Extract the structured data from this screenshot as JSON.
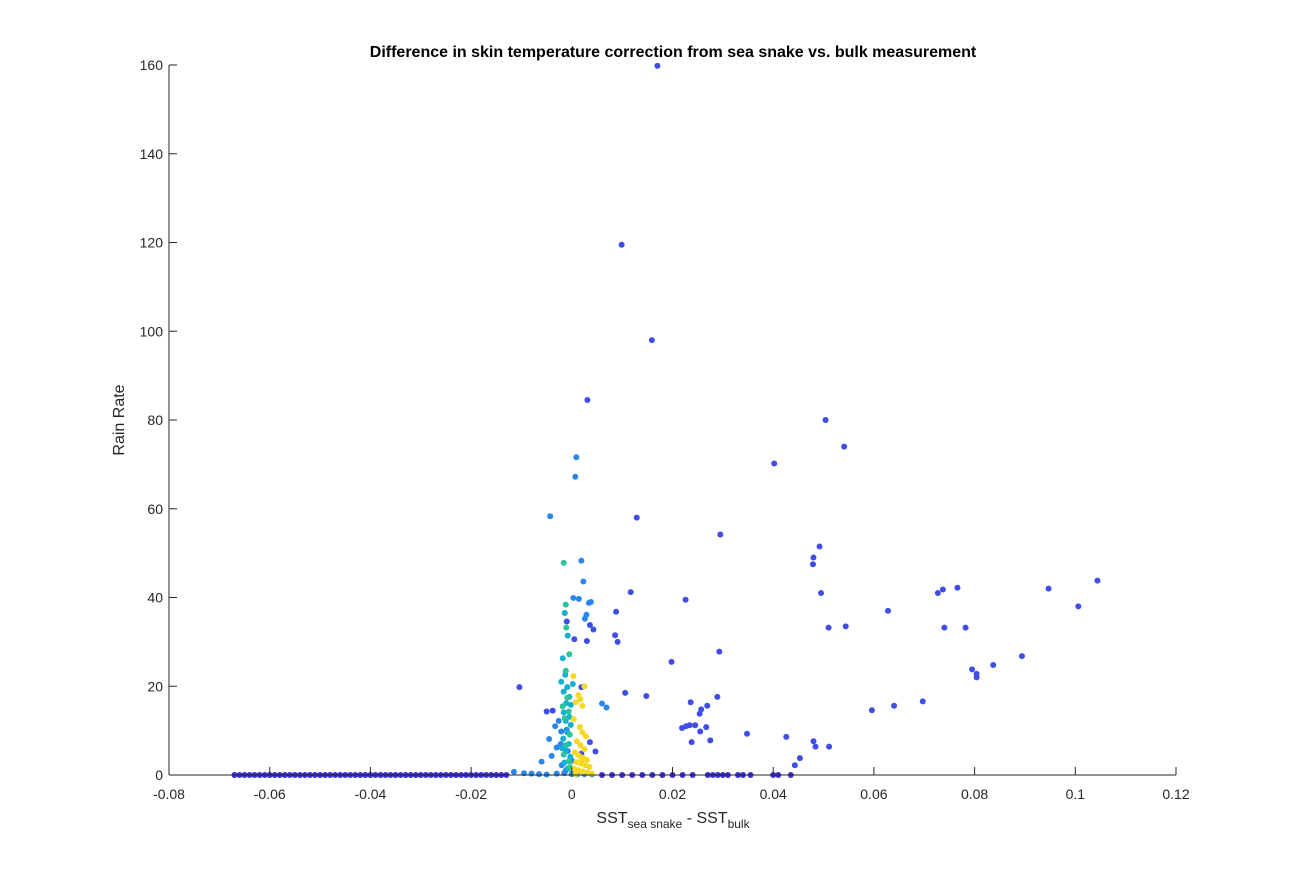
{
  "chart_data": {
    "type": "scatter",
    "title": "Difference in skin temperature correction from sea snake vs. bulk measurement",
    "xlabel": {
      "parts": [
        {
          "text": "SST",
          "sub": false
        },
        {
          "text": "sea snake",
          "sub": true
        },
        {
          "text": " - SST",
          "sub": false
        },
        {
          "text": "bulk",
          "sub": true
        }
      ]
    },
    "ylabel": "Rain Rate",
    "xlim": [
      -0.08,
      0.12
    ],
    "ylim": [
      0,
      160
    ],
    "x_ticks": [
      -0.08,
      -0.06,
      -0.04,
      -0.02,
      0,
      0.02,
      0.04,
      0.06,
      0.08,
      0.1,
      0.12
    ],
    "x_tick_labels": [
      "-0.08",
      "-0.06",
      "-0.04",
      "-0.02",
      "0",
      "0.02",
      "0.04",
      "0.06",
      "0.08",
      "0.1",
      "0.12"
    ],
    "y_ticks": [
      0,
      20,
      40,
      60,
      80,
      100,
      120,
      140,
      160
    ],
    "y_tick_labels": [
      "0",
      "20",
      "40",
      "60",
      "80",
      "100",
      "120",
      "140",
      "160"
    ],
    "grid": false,
    "legend": "none",
    "box": "left-bottom axes only",
    "colors": {
      "indigo": "#3b2fd6",
      "blue": "#3f4ee6",
      "azure": "#2b86ec",
      "cyan": "#14b0d2",
      "teal": "#2ec49a",
      "yellow": "#f5d823"
    },
    "series": [
      {
        "color": "#3f4ee6",
        "points": [
          [
            0.017,
            159.8
          ],
          [
            0.0099,
            119.5
          ],
          [
            0.0159,
            98.0
          ],
          [
            0.0031,
            84.5
          ],
          [
            0.0504,
            80.0
          ],
          [
            0.0541,
            74.0
          ],
          [
            0.0402,
            70.2
          ],
          [
            0.0295,
            54.2
          ],
          [
            0.0129,
            58.0
          ],
          [
            0.0492,
            51.5
          ],
          [
            0.048,
            49.0
          ],
          [
            0.0479,
            47.5
          ],
          [
            0.1044,
            43.8
          ],
          [
            0.0947,
            42.0
          ],
          [
            0.0766,
            42.2
          ],
          [
            0.0737,
            41.8
          ],
          [
            0.0727,
            41.0
          ],
          [
            0.0495,
            41.0
          ],
          [
            0.0117,
            41.2
          ],
          [
            0.0226,
            39.5
          ],
          [
            0.1006,
            38.0
          ],
          [
            0.0628,
            37.0
          ],
          [
            0.0088,
            36.8
          ],
          [
            0.0544,
            33.5
          ],
          [
            0.051,
            33.2
          ],
          [
            0.074,
            33.2
          ],
          [
            0.0782,
            33.2
          ],
          [
            0.0086,
            31.5
          ],
          [
            0.0293,
            27.8
          ],
          [
            0.0894,
            26.8
          ],
          [
            0.0198,
            25.5
          ],
          [
            0.0837,
            24.8
          ],
          [
            0.0795,
            23.8
          ],
          [
            0.0804,
            22.8
          ],
          [
            0.0804,
            22.0
          ],
          [
            -0.0104,
            19.8
          ],
          [
            0.0106,
            18.5
          ],
          [
            0.0148,
            17.8
          ],
          [
            0.0289,
            17.6
          ],
          [
            0.0697,
            16.6
          ],
          [
            0.064,
            15.6
          ],
          [
            0.0236,
            16.4
          ],
          [
            0.0269,
            15.6
          ],
          [
            0.0596,
            14.6
          ],
          [
            0.0257,
            14.8
          ],
          [
            0.0254,
            13.8
          ],
          [
            0.0245,
            11.2
          ],
          [
            0.0234,
            11.2
          ],
          [
            0.0227,
            11.0
          ],
          [
            0.0267,
            10.8
          ],
          [
            0.0219,
            10.6
          ],
          [
            0.0255,
            9.8
          ],
          [
            0.0348,
            9.3
          ],
          [
            0.0426,
            8.6
          ],
          [
            0.0275,
            7.8
          ],
          [
            0.0238,
            7.4
          ],
          [
            0.048,
            7.6
          ],
          [
            0.0484,
            6.4
          ],
          [
            0.0511,
            6.4
          ],
          [
            0.0453,
            3.8
          ],
          [
            0.0443,
            2.2
          ],
          [
            0.0036,
            7.4
          ],
          [
            0.0047,
            5.3
          ],
          [
            -0.0038,
            14.5
          ],
          [
            0.003,
            30.2
          ],
          [
            0.0005,
            30.6
          ],
          [
            0.0091,
            30.0
          ],
          [
            0.0043,
            32.8
          ],
          [
            -0.001,
            34.6
          ],
          [
            0.0036,
            33.8
          ],
          [
            -0.005,
            14.3
          ],
          [
            0.0019,
            4.8
          ],
          [
            0.0019,
            19.8
          ]
        ]
      },
      {
        "color": "#3b2fd6",
        "points": [
          [
            -0.067,
            0
          ],
          [
            -0.066,
            0
          ],
          [
            -0.065,
            0
          ],
          [
            -0.064,
            0
          ],
          [
            -0.063,
            0
          ],
          [
            -0.062,
            0
          ],
          [
            -0.061,
            0
          ],
          [
            -0.06,
            0
          ],
          [
            -0.059,
            0
          ],
          [
            -0.058,
            0
          ],
          [
            -0.057,
            0
          ],
          [
            -0.056,
            0
          ],
          [
            -0.055,
            0
          ],
          [
            -0.054,
            0
          ],
          [
            -0.053,
            0
          ],
          [
            -0.052,
            0
          ],
          [
            -0.051,
            0
          ],
          [
            -0.05,
            0
          ],
          [
            -0.049,
            0
          ],
          [
            -0.048,
            0
          ],
          [
            -0.047,
            0
          ],
          [
            -0.046,
            0
          ],
          [
            -0.045,
            0
          ],
          [
            -0.044,
            0
          ],
          [
            -0.043,
            0
          ],
          [
            -0.042,
            0
          ],
          [
            -0.041,
            0
          ],
          [
            -0.04,
            0
          ],
          [
            -0.039,
            0
          ],
          [
            -0.038,
            0
          ],
          [
            -0.037,
            0
          ],
          [
            -0.036,
            0
          ],
          [
            -0.035,
            0
          ],
          [
            -0.034,
            0
          ],
          [
            -0.033,
            0
          ],
          [
            -0.032,
            0
          ],
          [
            -0.031,
            0
          ],
          [
            -0.03,
            0
          ],
          [
            -0.029,
            0
          ],
          [
            -0.028,
            0
          ],
          [
            -0.027,
            0
          ],
          [
            -0.026,
            0
          ],
          [
            -0.025,
            0
          ],
          [
            -0.024,
            0
          ],
          [
            -0.023,
            0
          ],
          [
            -0.022,
            0
          ],
          [
            -0.021,
            0
          ],
          [
            -0.02,
            0
          ],
          [
            -0.019,
            0
          ],
          [
            -0.018,
            0
          ],
          [
            -0.017,
            0
          ],
          [
            -0.016,
            0
          ],
          [
            -0.015,
            0
          ],
          [
            -0.014,
            0
          ],
          [
            -0.013,
            0
          ],
          [
            0.006,
            0
          ],
          [
            0.008,
            0
          ],
          [
            0.01,
            0
          ],
          [
            0.012,
            0
          ],
          [
            0.014,
            0
          ],
          [
            0.016,
            0
          ],
          [
            0.018,
            0
          ],
          [
            0.02,
            0
          ],
          [
            0.022,
            0
          ],
          [
            0.024,
            0
          ],
          [
            0.027,
            0
          ],
          [
            0.028,
            0
          ],
          [
            0.029,
            0
          ],
          [
            0.03,
            0
          ],
          [
            0.031,
            0
          ],
          [
            0.033,
            0
          ],
          [
            0.034,
            0
          ],
          [
            0.0355,
            0
          ],
          [
            0.04,
            0
          ],
          [
            0.041,
            0
          ],
          [
            0.0435,
            0
          ]
        ]
      },
      {
        "color": "#2b86ec",
        "points": [
          [
            0.0009,
            71.6
          ],
          [
            0.0007,
            67.2
          ],
          [
            -0.0043,
            58.3
          ],
          [
            0.0019,
            48.3
          ],
          [
            0.0023,
            43.6
          ],
          [
            0.0003,
            39.9
          ],
          [
            0.0014,
            39.7
          ],
          [
            0.0038,
            39.0
          ],
          [
            0.0034,
            38.8
          ],
          [
            0.0029,
            36.1
          ],
          [
            0.0026,
            35.2
          ],
          [
            0.006,
            16.1
          ],
          [
            0.0069,
            15.2
          ],
          [
            -0.0021,
            9.8
          ],
          [
            -0.0045,
            8.1
          ],
          [
            -0.003,
            6.2
          ],
          [
            -0.004,
            4.3
          ],
          [
            -0.006,
            3.0
          ],
          [
            -0.002,
            2.2
          ],
          [
            -0.0012,
            1.0
          ],
          [
            -0.0115,
            0.7
          ],
          [
            -0.0095,
            0.4
          ],
          [
            -0.008,
            0.3
          ],
          [
            -0.0065,
            0.2
          ],
          [
            -0.005,
            0.1
          ],
          [
            -0.003,
            0.3
          ],
          [
            -0.0015,
            0.4
          ],
          [
            0.0,
            0.2
          ],
          [
            0.001,
            0.1
          ],
          [
            0.0025,
            0.2
          ],
          [
            0.004,
            0.1
          ],
          [
            -0.0026,
            12.2
          ],
          [
            -0.0033,
            11.0
          ],
          [
            -0.001,
            10.2
          ],
          [
            -0.0022,
            7.0
          ],
          [
            -0.0008,
            5.4
          ],
          [
            0.0,
            3.2
          ]
        ]
      },
      {
        "color": "#14b0d2",
        "points": [
          [
            -0.0014,
            36.5
          ],
          [
            -0.0008,
            31.4
          ],
          [
            -0.0018,
            26.3
          ],
          [
            -0.0013,
            22.6
          ],
          [
            -0.0021,
            21.0
          ],
          [
            -0.0009,
            19.8
          ],
          [
            -0.0016,
            18.8
          ],
          [
            -0.0005,
            17.6
          ],
          [
            -0.0011,
            16.2
          ],
          [
            -0.0002,
            15.8
          ],
          [
            -0.0016,
            14.1
          ],
          [
            -0.0005,
            13.1
          ],
          [
            -0.0012,
            12.2
          ],
          [
            -0.0002,
            11.3
          ],
          [
            -0.0009,
            9.6
          ],
          [
            -0.0017,
            8.2
          ],
          [
            -0.0006,
            7.0
          ],
          [
            -0.0012,
            5.6
          ],
          [
            -0.0003,
            4.1
          ],
          [
            -0.0015,
            2.8
          ],
          [
            -0.0008,
            1.5
          ],
          [
            0.0001,
            0.6
          ],
          [
            0.0002,
            20.5
          ],
          [
            -0.0019,
            6.0
          ]
        ]
      },
      {
        "color": "#2ec49a",
        "points": [
          [
            -0.0016,
            47.8
          ],
          [
            -0.0012,
            38.4
          ],
          [
            -0.0011,
            33.2
          ],
          [
            -0.0005,
            27.2
          ],
          [
            -0.0012,
            23.5
          ],
          [
            -0.0009,
            17.4
          ],
          [
            -0.0018,
            15.5
          ],
          [
            -0.0006,
            14.3
          ],
          [
            -0.0014,
            12.8
          ],
          [
            -0.0004,
            9.1
          ],
          [
            -0.0011,
            6.8
          ],
          [
            -0.0016,
            4.6
          ],
          [
            -0.0006,
            3.1
          ],
          [
            -0.0003,
            1.8
          ]
        ]
      },
      {
        "color": "#f5d823",
        "points": [
          [
            0.0003,
            22.3
          ],
          [
            0.0025,
            20.0
          ],
          [
            0.0013,
            18.0
          ],
          [
            0.0017,
            17.1
          ],
          [
            0.0008,
            16.4
          ],
          [
            0.0021,
            15.6
          ],
          [
            0.0004,
            12.6
          ],
          [
            0.0016,
            10.8
          ],
          [
            0.0021,
            9.6
          ],
          [
            0.0028,
            8.7
          ],
          [
            0.001,
            7.6
          ],
          [
            0.0017,
            6.7
          ],
          [
            0.0025,
            5.8
          ],
          [
            0.0006,
            5.1
          ],
          [
            0.0014,
            4.4
          ],
          [
            0.0022,
            3.9
          ],
          [
            0.003,
            3.4
          ],
          [
            0.0009,
            2.9
          ],
          [
            0.0018,
            2.6
          ],
          [
            0.0027,
            2.2
          ],
          [
            0.0035,
            1.8
          ],
          [
            0.0004,
            1.4
          ],
          [
            0.0013,
            1.1
          ],
          [
            0.0022,
            0.8
          ],
          [
            0.0031,
            0.5
          ],
          [
            0.004,
            0.3
          ],
          [
            0.0008,
            0.2
          ],
          [
            0.0019,
            3.2
          ]
        ]
      }
    ]
  }
}
